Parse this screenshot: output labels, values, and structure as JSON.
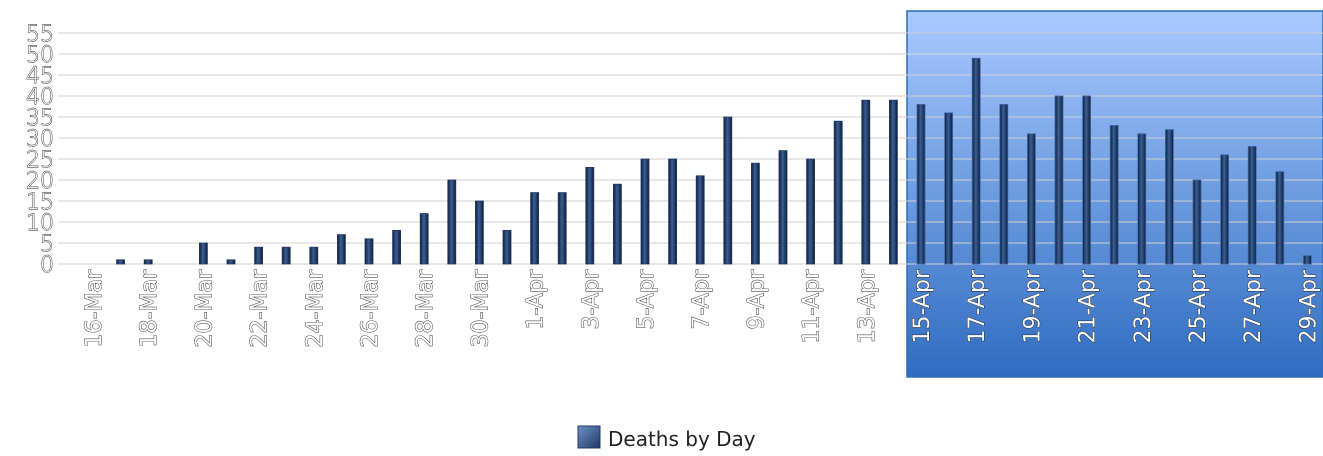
{
  "chart_data": {
    "type": "bar",
    "title": "",
    "xlabel": "",
    "ylabel": "",
    "ylim": [
      0,
      55
    ],
    "yticks": [
      0,
      5,
      10,
      15,
      20,
      25,
      30,
      35,
      40,
      45,
      50,
      55
    ],
    "grid": true,
    "legend_position": "bottom",
    "categories": [
      "16-Mar",
      "17-Mar",
      "18-Mar",
      "19-Mar",
      "20-Mar",
      "21-Mar",
      "22-Mar",
      "23-Mar",
      "24-Mar",
      "25-Mar",
      "26-Mar",
      "27-Mar",
      "28-Mar",
      "29-Mar",
      "30-Mar",
      "31-Mar",
      "1-Apr",
      "2-Apr",
      "3-Apr",
      "4-Apr",
      "5-Apr",
      "6-Apr",
      "7-Apr",
      "8-Apr",
      "9-Apr",
      "10-Apr",
      "11-Apr",
      "12-Apr",
      "13-Apr",
      "14-Apr",
      "15-Apr",
      "16-Apr",
      "17-Apr",
      "18-Apr",
      "19-Apr",
      "20-Apr",
      "21-Apr",
      "22-Apr",
      "23-Apr",
      "24-Apr",
      "25-Apr",
      "26-Apr",
      "27-Apr",
      "28-Apr",
      "29-Apr"
    ],
    "tick_labels": [
      "16-Mar",
      "18-Mar",
      "20-Mar",
      "22-Mar",
      "24-Mar",
      "26-Mar",
      "28-Mar",
      "30-Mar",
      "1-Apr",
      "3-Apr",
      "5-Apr",
      "7-Apr",
      "9-Apr",
      "11-Apr",
      "13-Apr",
      "15-Apr",
      "17-Apr",
      "19-Apr",
      "21-Apr",
      "23-Apr",
      "25-Apr",
      "27-Apr",
      "29-Apr"
    ],
    "series": [
      {
        "name": "Deaths by Day",
        "values": [
          0,
          1,
          1,
          0,
          5,
          1,
          4,
          4,
          4,
          7,
          6,
          8,
          12,
          20,
          15,
          8,
          17,
          17,
          23,
          19,
          25,
          25,
          21,
          35,
          24,
          27,
          25,
          34,
          39,
          39,
          38,
          36,
          49,
          38,
          31,
          40,
          40,
          33,
          31,
          32,
          20,
          26,
          28,
          22,
          2
        ]
      }
    ],
    "colors": {
      "bar": "#1f3864",
      "bar_highlight": "#3e6aa8",
      "highlight_top": "#a9caff",
      "highlight_bottom": "#2f6cc0",
      "highlight_border": "#2e6bb8",
      "gridline": "#d0d0d0"
    }
  }
}
